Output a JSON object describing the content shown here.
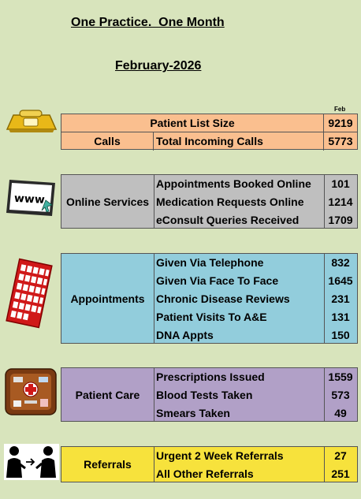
{
  "header": {
    "title": "One Practice.  One Month",
    "month": "February-2026",
    "column_label": "Feb"
  },
  "sections": {
    "list_size": {
      "label": "Patient List Size",
      "value": "9219"
    },
    "calls": {
      "category": "Calls",
      "item": "Total Incoming Calls",
      "value": "5773"
    },
    "online": {
      "category": "Online Services",
      "items": [
        {
          "label": "Appointments Booked Online",
          "value": "101"
        },
        {
          "label": "Medication Requests Online",
          "value": "1214"
        },
        {
          "label": "eConsult Queries Received",
          "value": "1709"
        }
      ]
    },
    "appointments": {
      "category": "Appointments",
      "items": [
        {
          "label": "Given Via Telephone",
          "value": "832"
        },
        {
          "label": "Given Via Face To Face",
          "value": "1645"
        },
        {
          "label": "Chronic Disease Reviews",
          "value": "231"
        },
        {
          "label": "Patient Visits To A&E",
          "value": "131"
        },
        {
          "label": "DNA Appts",
          "value": "150"
        }
      ]
    },
    "patient_care": {
      "category": "Patient Care",
      "items": [
        {
          "label": "Prescriptions Issued",
          "value": "1559"
        },
        {
          "label": "Blood Tests Taken",
          "value": "573"
        },
        {
          "label": "Smears Taken",
          "value": "49"
        }
      ]
    },
    "referrals": {
      "category": "Referrals",
      "items": [
        {
          "label": "Urgent 2 Week Referrals",
          "value": "27"
        },
        {
          "label": "All Other Referrals",
          "value": "251"
        }
      ]
    }
  },
  "icons": {
    "calls": "telephone-icon",
    "online": "www-browser-icon",
    "appointments": "calendar-icon",
    "patient_care": "medical-kit-icon",
    "referrals": "referral-people-icon"
  },
  "colors": {
    "background": "#d8e4bc",
    "calls": "#fabf8f",
    "online": "#bfbfbf",
    "appointments": "#92cddc",
    "patient_care": "#b1a0c7",
    "referrals": "#f7e23c"
  }
}
